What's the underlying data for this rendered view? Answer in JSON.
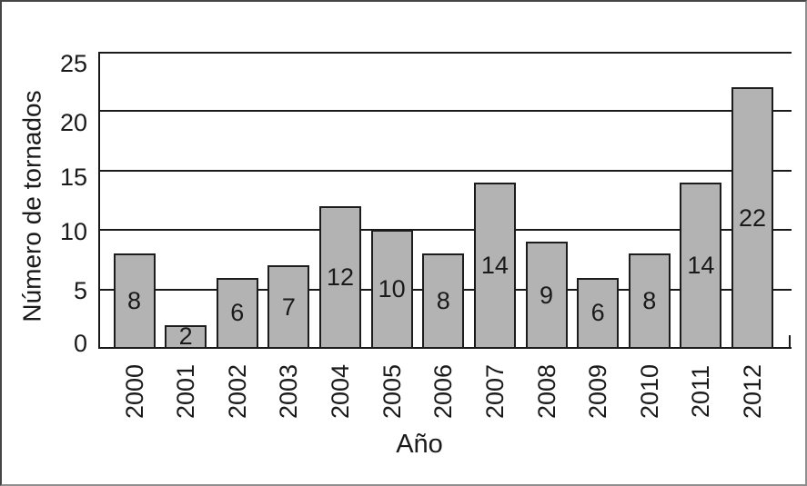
{
  "chart_data": {
    "type": "bar",
    "title": "",
    "xlabel": "Año",
    "ylabel": "Número de tornados",
    "categories": [
      "2000",
      "2001",
      "2002",
      "2003",
      "2004",
      "2005",
      "2006",
      "2007",
      "2008",
      "2009",
      "2010",
      "2011",
      "2012"
    ],
    "values": [
      8,
      2,
      6,
      7,
      12,
      10,
      8,
      14,
      9,
      6,
      8,
      14,
      22
    ],
    "value_labels_shown": true,
    "ylim": [
      0,
      25
    ],
    "yticks": [
      0,
      5,
      10,
      15,
      20,
      25
    ],
    "grid": true,
    "legend": "none",
    "bar_fill_color": "#b3b3b3",
    "bar_border_color": "#1c1c1c",
    "axis_line_color": "#1a1a1a",
    "text_color": "#1a1a1a",
    "frame_border_color": "#5c5c5c",
    "background_color": "#ffffff"
  }
}
